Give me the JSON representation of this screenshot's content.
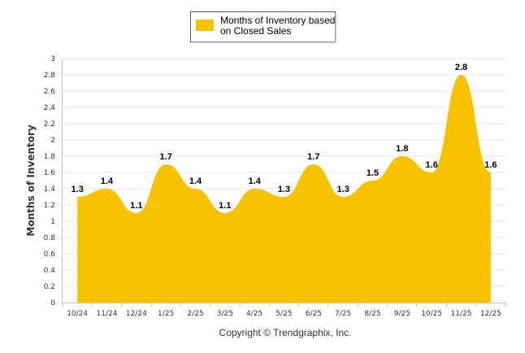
{
  "chart_data": {
    "type": "area",
    "categories": [
      "10/24",
      "11/24",
      "12/24",
      "1/25",
      "2/25",
      "3/25",
      "4/25",
      "5/25",
      "6/25",
      "7/25",
      "8/25",
      "9/25",
      "10/25",
      "11/25",
      "12/25"
    ],
    "series": [
      {
        "name": "Months of Inventory based on Closed Sales",
        "values": [
          1.3,
          1.4,
          1.1,
          1.7,
          1.4,
          1.1,
          1.4,
          1.3,
          1.7,
          1.3,
          1.5,
          1.8,
          1.6,
          2.8,
          1.6
        ]
      }
    ],
    "data_labels": [
      "1.3",
      "1.4",
      "1.1",
      "1.7",
      "1.4",
      "1.1",
      "1.4",
      "1.3",
      "1.7",
      "1.3",
      "1.5",
      "1.8",
      "1.6",
      "2.8",
      "1.6"
    ],
    "ylabel": "Months of Inventory",
    "xlabel": "",
    "ylim": [
      0,
      3
    ],
    "yticks": [
      "0",
      "0.2",
      "0.4",
      "0.6",
      "0.8",
      "1",
      "1.2",
      "1.4",
      "1.6",
      "1.8",
      "2",
      "2.2",
      "2.4",
      "2.6",
      "2.8",
      "3"
    ],
    "legend": {
      "line1": "Months of Inventory based",
      "line2": "on Closed Sales",
      "position": "top-center"
    },
    "grid": true,
    "colors": {
      "fill": "#F7C200",
      "grid": "#E6E6E6",
      "axis": "#C0C0C0"
    }
  },
  "footer": {
    "copyright": "Copyright © Trendgraphix, Inc."
  }
}
